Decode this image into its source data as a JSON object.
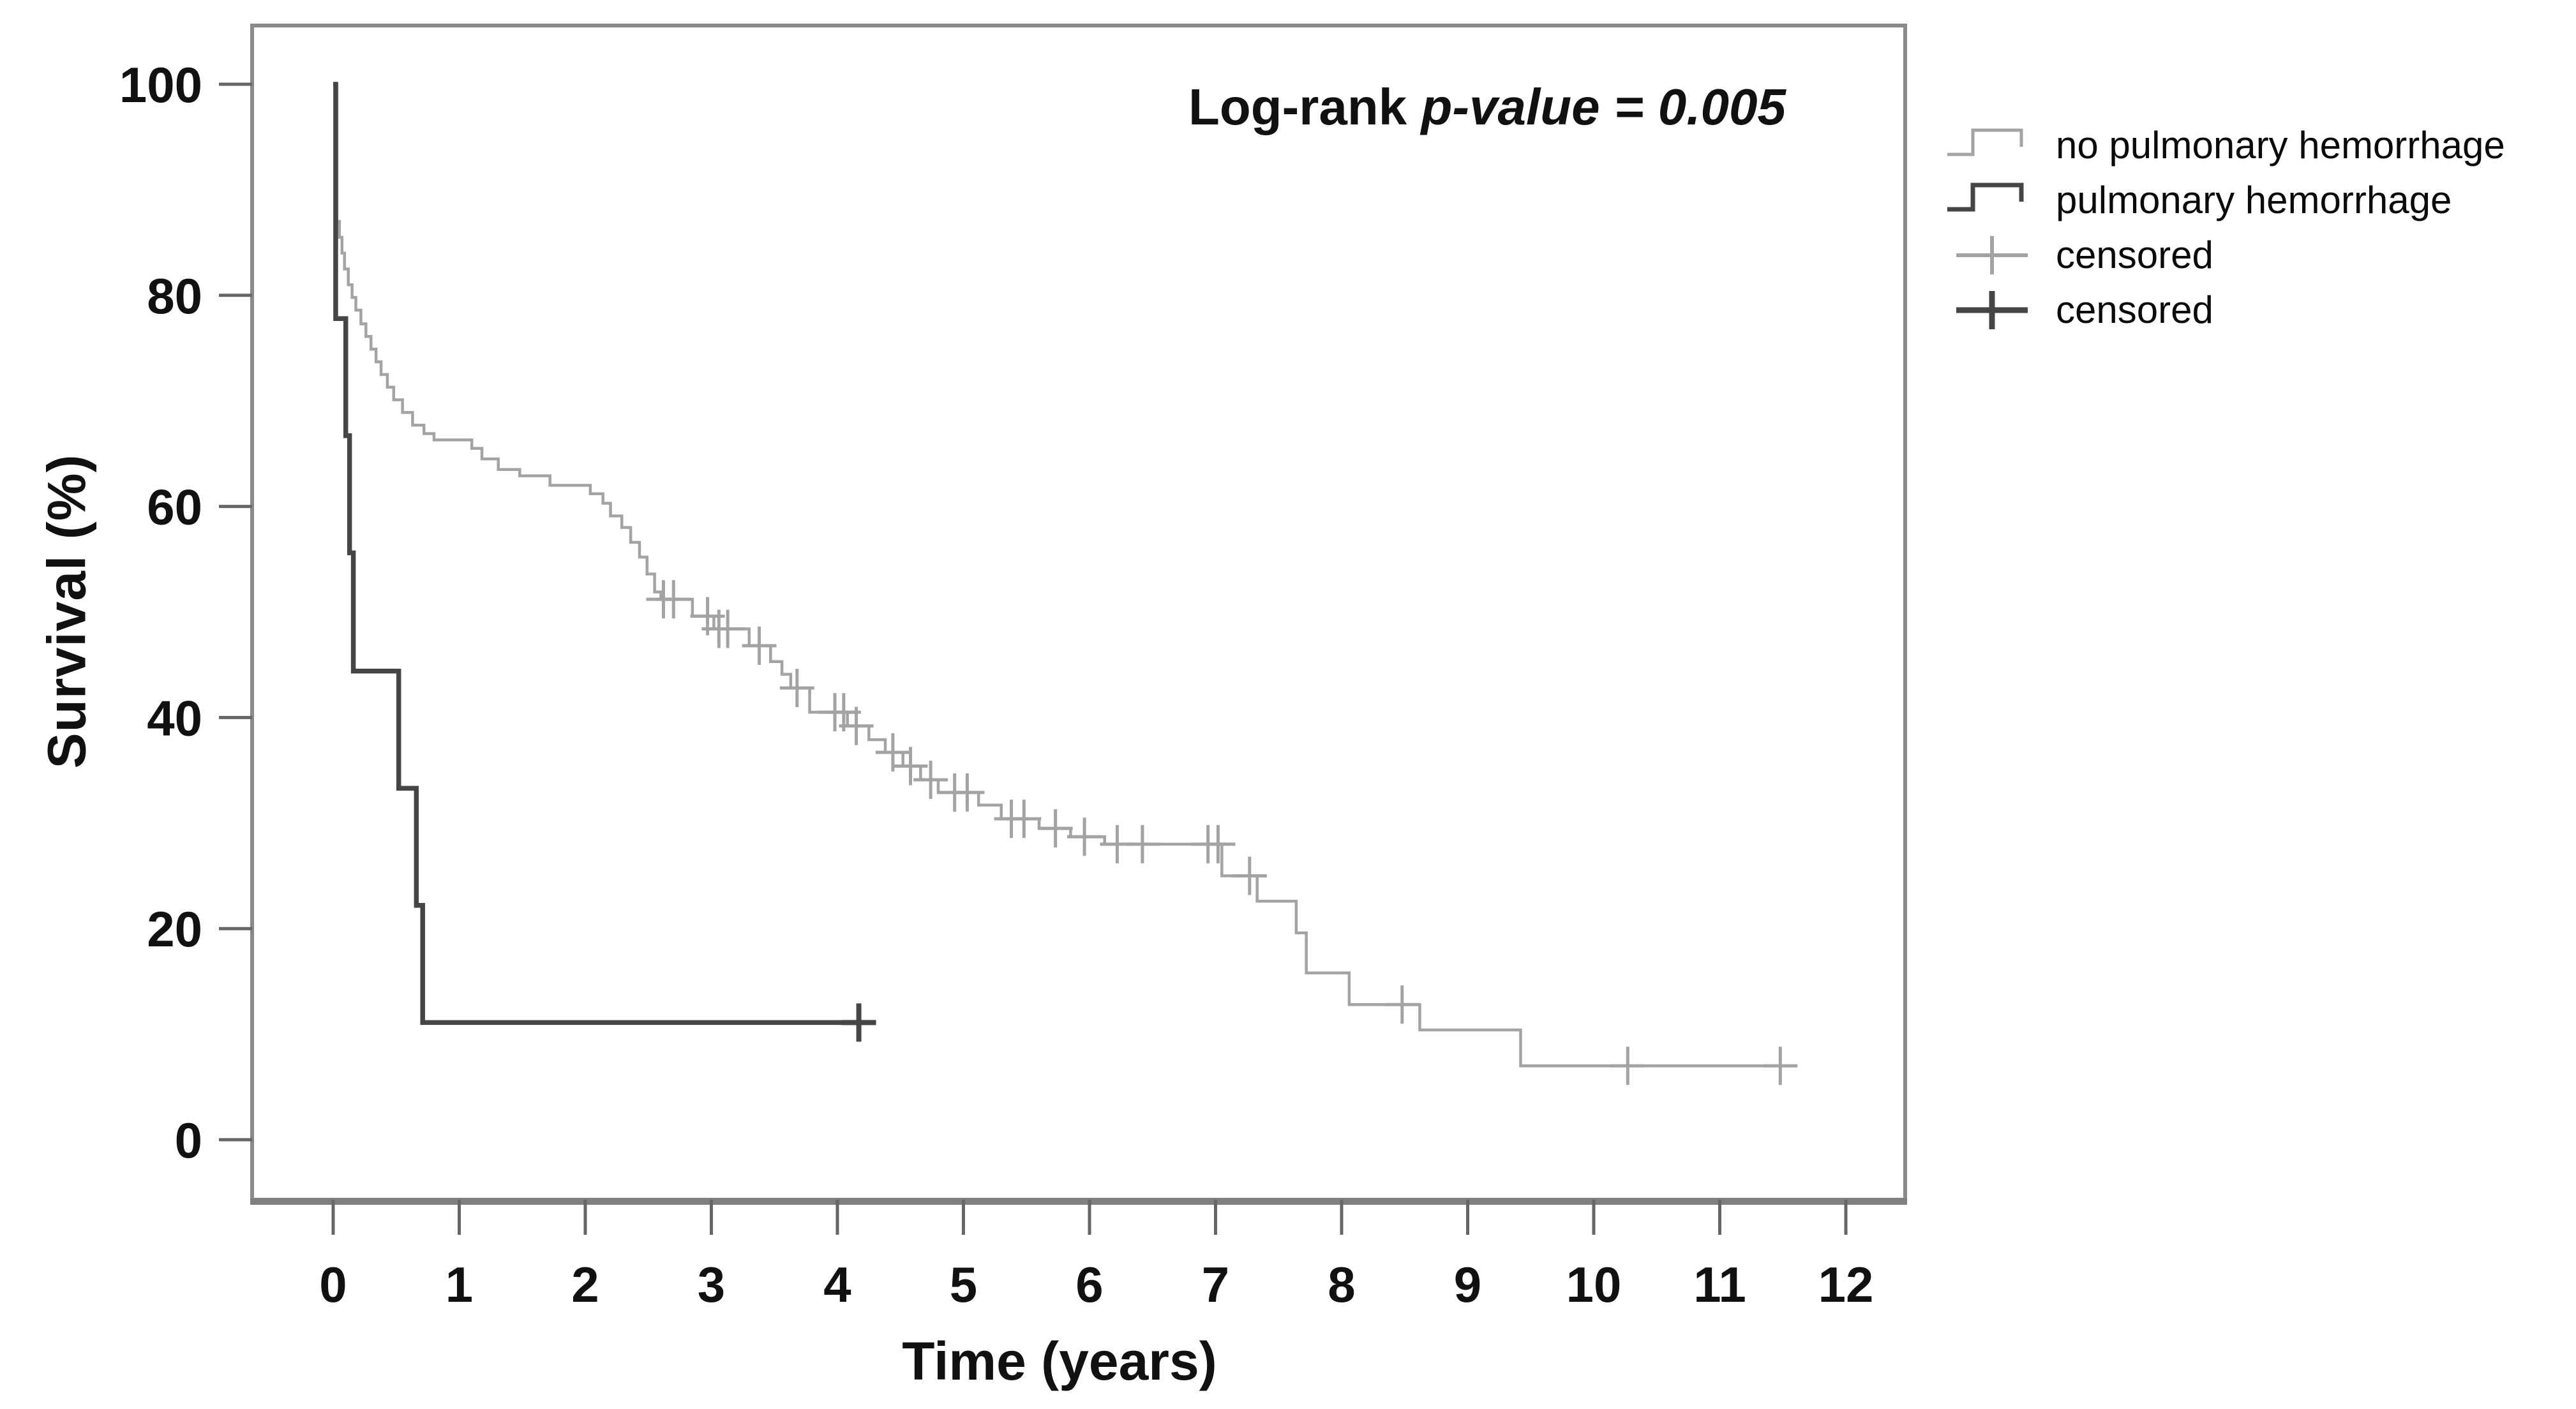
{
  "figure": {
    "kind": "kaplan-meier-survival-plot",
    "annotation": {
      "prefix": "Log-rank ",
      "italic": "p-value = 0.005"
    },
    "x_axis": {
      "title": "Time (years)",
      "ticks": [
        0,
        1,
        2,
        3,
        4,
        5,
        6,
        7,
        8,
        9,
        10,
        11,
        12
      ],
      "range": [
        0,
        12.6
      ]
    },
    "y_axis": {
      "title": "Survival (%)",
      "ticks": [
        100,
        80,
        60,
        40,
        20,
        0
      ],
      "range": [
        0,
        100
      ]
    },
    "legend": {
      "items": [
        {
          "label": "no pulmonary hemorrhage",
          "marker": "step-line",
          "color": "#a3a3a3",
          "stroke": 5
        },
        {
          "label": "pulmonary hemorrhage",
          "marker": "step-line",
          "color": "#454545",
          "stroke": 7
        },
        {
          "label": "censored",
          "marker": "plus",
          "color": "#a3a3a3",
          "stroke": 6
        },
        {
          "label": "censored",
          "marker": "plus",
          "color": "#454545",
          "stroke": 9
        }
      ]
    },
    "colors": {
      "frame": "#8a8a8a",
      "ticks": "#666666",
      "text": "#111111"
    }
  },
  "chart_data": {
    "type": "line",
    "subtype": "kaplan-meier-step",
    "title": "",
    "xlabel": "Time (years)",
    "ylabel": "Survival (%)",
    "xlim": [
      0,
      12.6
    ],
    "ylim": [
      0,
      100
    ],
    "grid": false,
    "legend_position": "right-outside",
    "annotation": "Log-rank p-value = 0.005",
    "series": [
      {
        "name": "no pulmonary hemorrhage",
        "color": "#a3a3a3",
        "width": 4.5,
        "end_time": 11.5,
        "steps": [
          [
            0,
            100
          ],
          [
            0.03,
            87
          ],
          [
            0.05,
            85.5
          ],
          [
            0.07,
            84
          ],
          [
            0.09,
            82.5
          ],
          [
            0.12,
            81
          ],
          [
            0.15,
            79.8
          ],
          [
            0.18,
            78.6
          ],
          [
            0.22,
            77.3
          ],
          [
            0.26,
            76.1
          ],
          [
            0.3,
            74.9
          ],
          [
            0.34,
            73.7
          ],
          [
            0.38,
            72.5
          ],
          [
            0.43,
            71.3
          ],
          [
            0.48,
            70.1
          ],
          [
            0.55,
            68.9
          ],
          [
            0.63,
            67.7
          ],
          [
            0.72,
            66.9
          ],
          [
            0.8,
            66.3
          ],
          [
            1.1,
            65.5
          ],
          [
            1.18,
            64.5
          ],
          [
            1.31,
            63.5
          ],
          [
            1.48,
            62.9
          ],
          [
            1.72,
            62.0
          ],
          [
            2.04,
            61.2
          ],
          [
            2.14,
            60.3
          ],
          [
            2.2,
            59.1
          ],
          [
            2.29,
            58.0
          ],
          [
            2.36,
            56.6
          ],
          [
            2.43,
            55.2
          ],
          [
            2.49,
            53.6
          ],
          [
            2.55,
            51.9
          ],
          [
            2.6,
            51.2
          ],
          [
            2.85,
            49.6
          ],
          [
            3.02,
            48.4
          ],
          [
            3.3,
            46.8
          ],
          [
            3.47,
            45.3
          ],
          [
            3.56,
            44.1
          ],
          [
            3.63,
            42.8
          ],
          [
            3.78,
            40.5
          ],
          [
            4.08,
            39.2
          ],
          [
            4.25,
            37.9
          ],
          [
            4.38,
            36.7
          ],
          [
            4.52,
            35.4
          ],
          [
            4.66,
            34.1
          ],
          [
            4.8,
            32.9
          ],
          [
            5.12,
            31.7
          ],
          [
            5.3,
            30.4
          ],
          [
            5.6,
            29.5
          ],
          [
            5.85,
            28.7
          ],
          [
            6.12,
            28.0
          ],
          [
            7.05,
            25.0
          ],
          [
            7.33,
            22.6
          ],
          [
            7.64,
            19.6
          ],
          [
            7.72,
            15.8
          ],
          [
            8.06,
            12.8
          ],
          [
            8.62,
            10.4
          ],
          [
            9.42,
            7.0
          ]
        ],
        "censored": [
          [
            2.62,
            51.2
          ],
          [
            2.7,
            51.2
          ],
          [
            2.97,
            49.6
          ],
          [
            3.06,
            48.4
          ],
          [
            3.13,
            48.4
          ],
          [
            3.38,
            46.8
          ],
          [
            3.68,
            42.8
          ],
          [
            3.98,
            40.5
          ],
          [
            4.05,
            40.5
          ],
          [
            4.15,
            39.2
          ],
          [
            4.44,
            36.7
          ],
          [
            4.58,
            35.4
          ],
          [
            4.74,
            34.1
          ],
          [
            4.93,
            32.9
          ],
          [
            5.03,
            32.9
          ],
          [
            5.38,
            30.4
          ],
          [
            5.48,
            30.4
          ],
          [
            5.73,
            29.5
          ],
          [
            5.96,
            28.7
          ],
          [
            6.22,
            28.0
          ],
          [
            6.42,
            28.0
          ],
          [
            6.94,
            28.0
          ],
          [
            7.02,
            28.0
          ],
          [
            7.27,
            25.0
          ],
          [
            8.48,
            12.8
          ],
          [
            10.27,
            7.0
          ],
          [
            11.48,
            7.0
          ]
        ]
      },
      {
        "name": "pulmonary hemorrhage",
        "color": "#454545",
        "width": 7.5,
        "end_time": 4.27,
        "steps": [
          [
            0,
            100
          ],
          [
            0.02,
            77.8
          ],
          [
            0.1,
            66.7
          ],
          [
            0.13,
            55.6
          ],
          [
            0.16,
            44.4
          ],
          [
            0.52,
            33.3
          ],
          [
            0.66,
            22.2
          ],
          [
            0.71,
            11.1
          ]
        ],
        "censored": [
          [
            4.17,
            11.1
          ]
        ]
      }
    ]
  }
}
